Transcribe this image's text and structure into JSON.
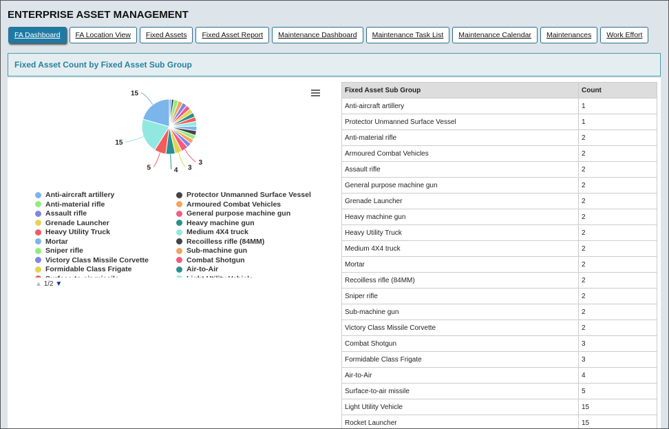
{
  "header": {
    "title": "ENTERPRISE ASSET MANAGEMENT"
  },
  "tabs": [
    "FA Dashboard",
    "FA Location View",
    "Fixed Assets",
    "Fixed Asset Report",
    "Maintenance Dashboard",
    "Maintenance Task List",
    "Maintenance Calendar",
    "Maintenances",
    "Work Effort"
  ],
  "active_tab": 0,
  "panel": {
    "title": "Fixed Asset Count by Fixed Asset Sub Group"
  },
  "chart": {
    "type": "pie",
    "colors": [
      "#7cb5ec",
      "#434348",
      "#90ed7d",
      "#f7a35c",
      "#8085e9",
      "#f15c80",
      "#e4d354",
      "#2b908f",
      "#f45b5b",
      "#91e8e1"
    ],
    "legend_page": "1/2"
  },
  "table": {
    "headers": [
      "Fixed Asset Sub Group",
      "Count"
    ],
    "rows": [
      [
        "Anti-aircraft artillery",
        1
      ],
      [
        "Protector Unmanned Surface Vessel",
        1
      ],
      [
        "Anti-material rifle",
        2
      ],
      [
        "Armoured Combat Vehicles",
        2
      ],
      [
        "Assault rifle",
        2
      ],
      [
        "General purpose machine gun",
        2
      ],
      [
        "Grenade Launcher",
        2
      ],
      [
        "Heavy machine gun",
        2
      ],
      [
        "Heavy Utility Truck",
        2
      ],
      [
        "Medium 4X4 truck",
        2
      ],
      [
        "Mortar",
        2
      ],
      [
        "Recoilless rifle (84MM)",
        2
      ],
      [
        "Sniper rifle",
        2
      ],
      [
        "Sub-machine gun",
        2
      ],
      [
        "Victory Class Missile Corvette",
        2
      ],
      [
        "Combat Shotgun",
        3
      ],
      [
        "Formidable Class Frigate",
        3
      ],
      [
        "Air-to-Air",
        4
      ],
      [
        "Surface-to-air missile",
        5
      ],
      [
        "Light Utility Vehicle",
        15
      ],
      [
        "Rocket Launcher",
        15
      ]
    ]
  }
}
